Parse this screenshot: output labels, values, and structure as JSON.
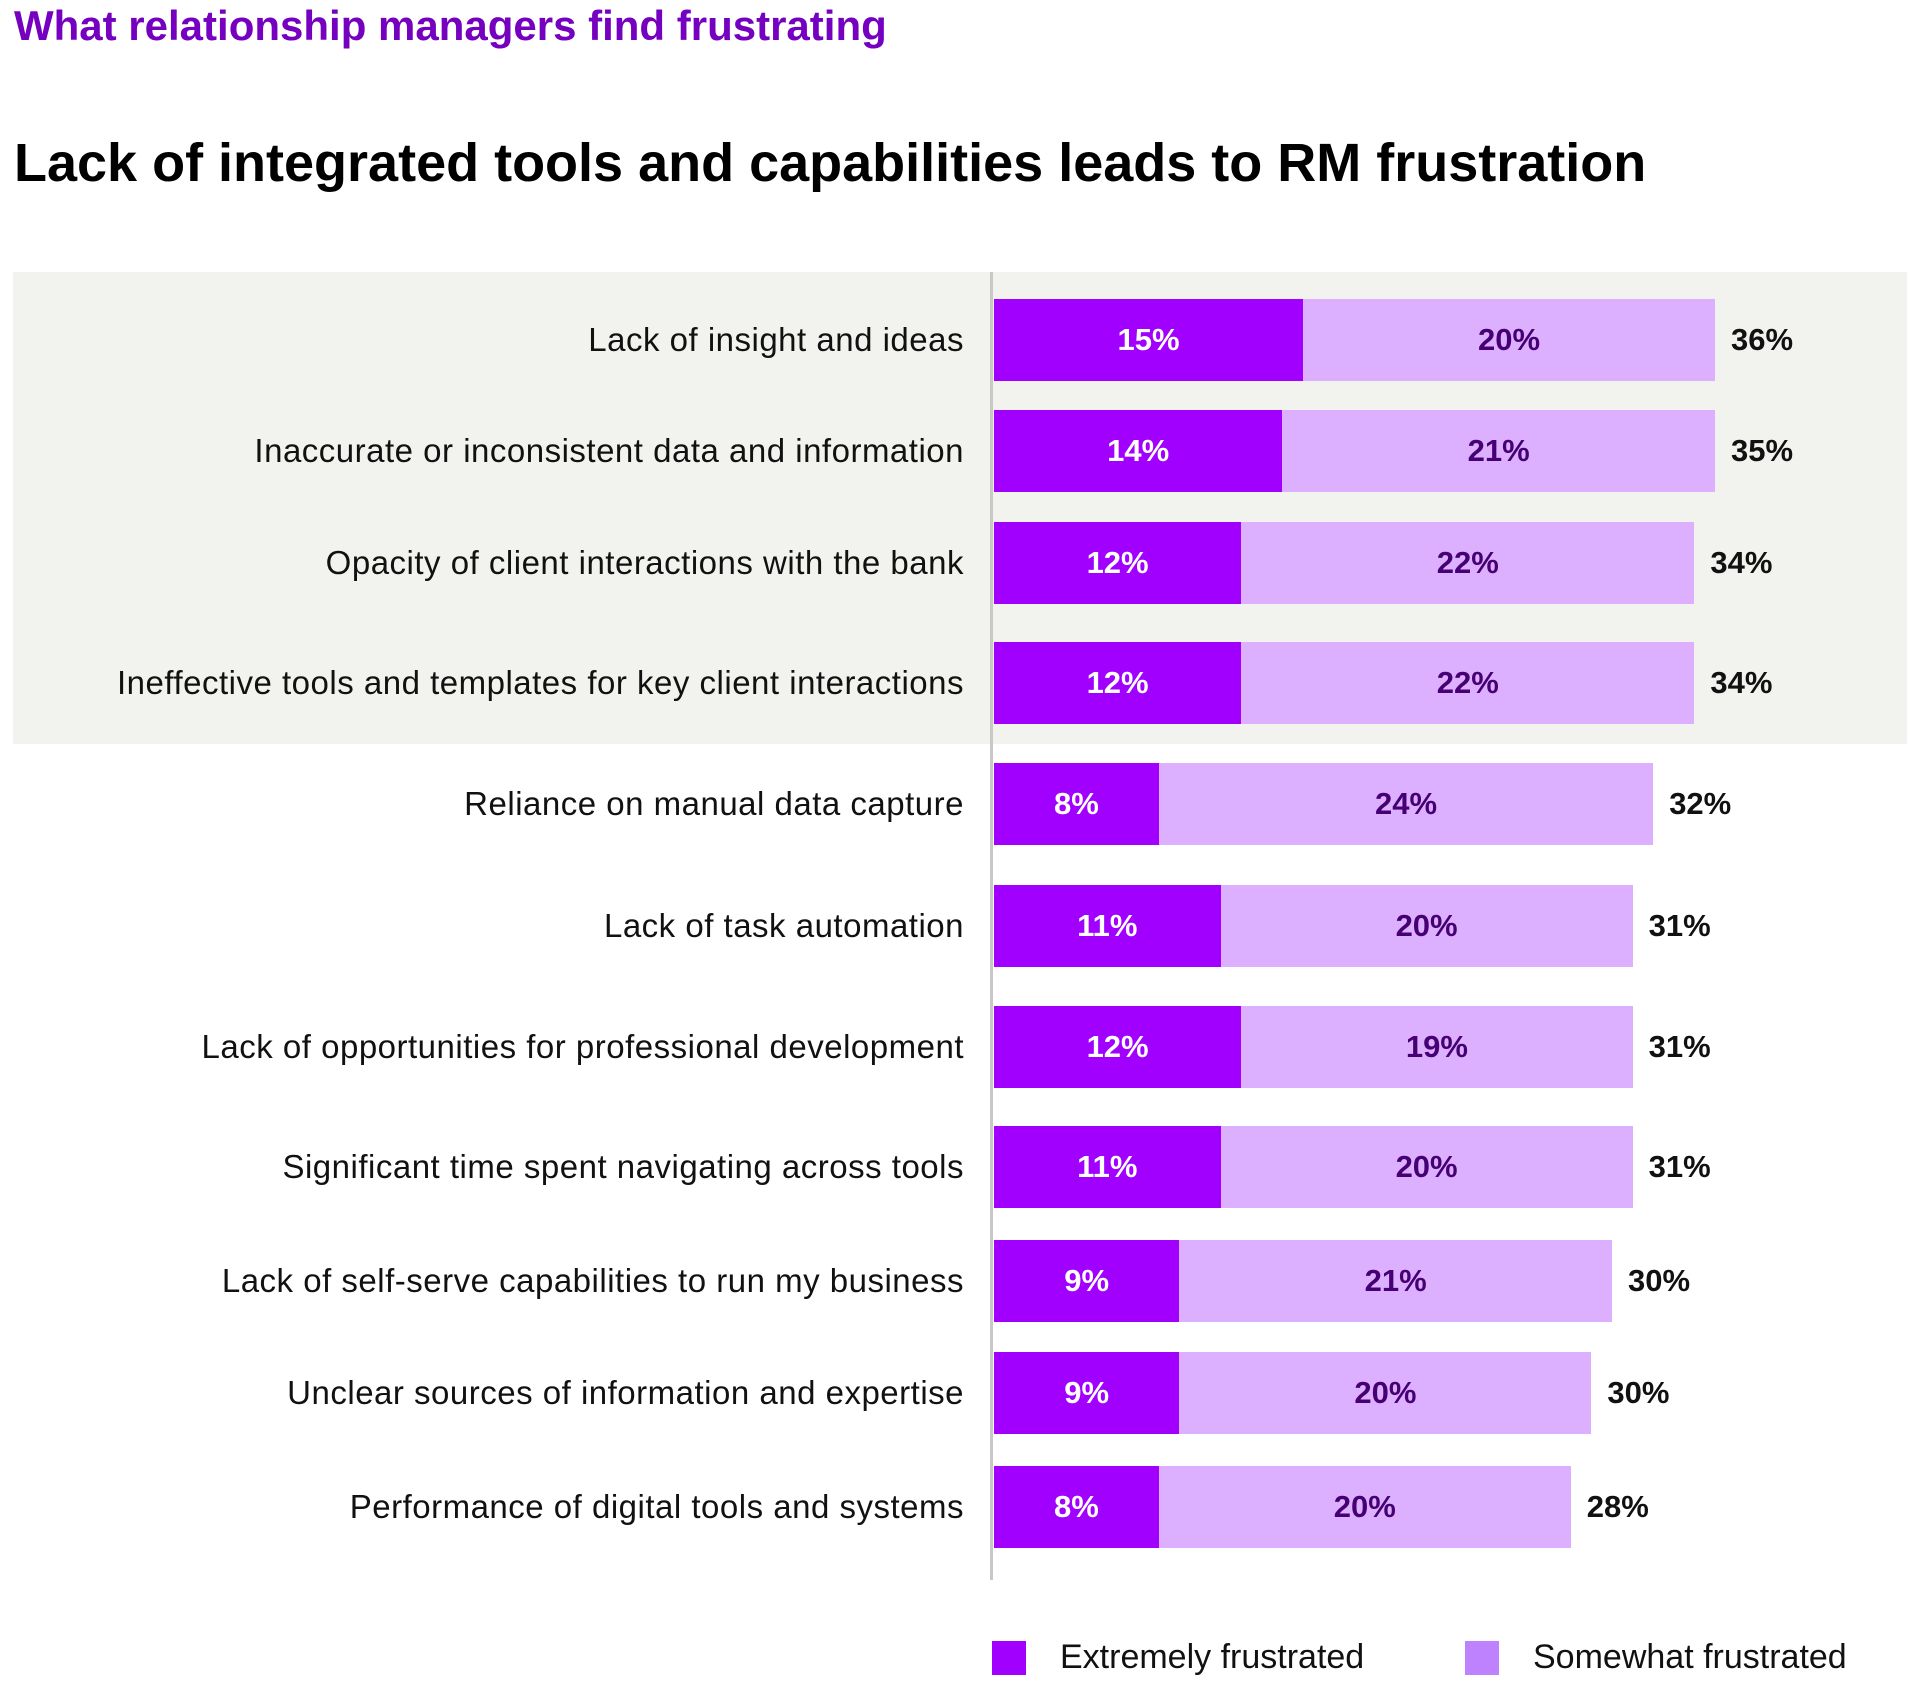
{
  "kicker": "What relationship managers find frustrating",
  "chart_data": {
    "type": "bar",
    "orientation": "horizontal",
    "stacked": true,
    "title": "Lack of integrated tools and capabilities leads to RM frustration",
    "categories": [
      "Lack of insight and ideas",
      "Inaccurate or inconsistent data and information",
      "Opacity of client interactions with the bank",
      "Ineffective tools and templates for key client interactions",
      "Reliance on manual data capture",
      "Lack of task automation",
      "Lack of opportunities for professional development",
      "Significant time spent navigating across tools",
      "Lack of self-serve capabilities to run my business",
      "Unclear sources of information and expertise",
      "Performance of digital tools and systems"
    ],
    "series": [
      {
        "name": "Extremely frustrated",
        "color": "#A100FF",
        "values": [
          15,
          14,
          12,
          12,
          8,
          11,
          12,
          11,
          9,
          9,
          8
        ]
      },
      {
        "name": "Somewhat frustrated",
        "color": "#DCAFFF",
        "legend_color": "#BE82FF",
        "values": [
          20,
          21,
          22,
          22,
          24,
          20,
          19,
          20,
          21,
          20,
          20
        ]
      }
    ],
    "totals": [
      36,
      35,
      34,
      34,
      32,
      31,
      31,
      31,
      30,
      30,
      28
    ],
    "highlighted_rows": [
      0,
      1,
      2,
      3
    ],
    "value_format": "%",
    "legend_placement": "bottom-right",
    "grid": false
  }
}
